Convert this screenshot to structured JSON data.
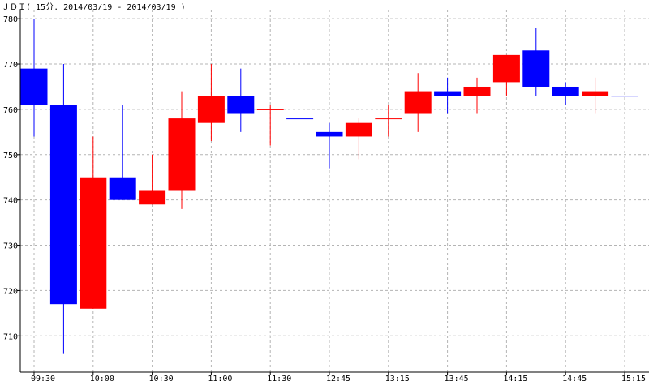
{
  "chart_data": {
    "type": "candlestick",
    "title": "ＪＤＩ( 15分, 2014/03/19 - 2014/03/19 )",
    "xlabel": "",
    "ylabel": "",
    "ylim": [
      702,
      782
    ],
    "y_ticks": [
      710,
      720,
      730,
      740,
      750,
      760,
      770,
      780
    ],
    "grid": true,
    "x_tick_labels": [
      "09:30",
      "10:00",
      "10:30",
      "11:00",
      "11:30",
      "12:45",
      "13:15",
      "13:45",
      "14:15",
      "14:45",
      "15:15"
    ],
    "up_color": "#ff0000",
    "down_color": "#0000ff",
    "candles": [
      {
        "open": 769,
        "high": 780,
        "low": 754,
        "close": 761
      },
      {
        "open": 761,
        "high": 770,
        "low": 706,
        "close": 717
      },
      {
        "open": 716,
        "high": 754,
        "low": 716,
        "close": 745
      },
      {
        "open": 745,
        "high": 761,
        "low": 740,
        "close": 740
      },
      {
        "open": 739,
        "high": 750,
        "low": 739,
        "close": 742
      },
      {
        "open": 742,
        "high": 764,
        "low": 738,
        "close": 758
      },
      {
        "open": 757,
        "high": 770,
        "low": 753,
        "close": 763
      },
      {
        "open": 763,
        "high": 769,
        "low": 755,
        "close": 759
      },
      {
        "open": 760,
        "high": 761,
        "low": 752,
        "close": 760
      },
      {
        "open": 758,
        "high": 758,
        "low": 758,
        "close": 758
      },
      {
        "open": 755,
        "high": 757,
        "low": 747,
        "close": 754
      },
      {
        "open": 754,
        "high": 758,
        "low": 749,
        "close": 757
      },
      {
        "open": 758,
        "high": 761,
        "low": 754,
        "close": 758
      },
      {
        "open": 759,
        "high": 768,
        "low": 755,
        "close": 764
      },
      {
        "open": 764,
        "high": 767,
        "low": 759,
        "close": 763
      },
      {
        "open": 763,
        "high": 767,
        "low": 759,
        "close": 765
      },
      {
        "open": 766,
        "high": 772,
        "low": 763,
        "close": 772
      },
      {
        "open": 773,
        "high": 778,
        "low": 763,
        "close": 765
      },
      {
        "open": 765,
        "high": 766,
        "low": 761,
        "close": 763
      },
      {
        "open": 763,
        "high": 767,
        "low": 759,
        "close": 764
      },
      {
        "open": 763,
        "high": 763,
        "low": 763,
        "close": 763
      }
    ]
  }
}
